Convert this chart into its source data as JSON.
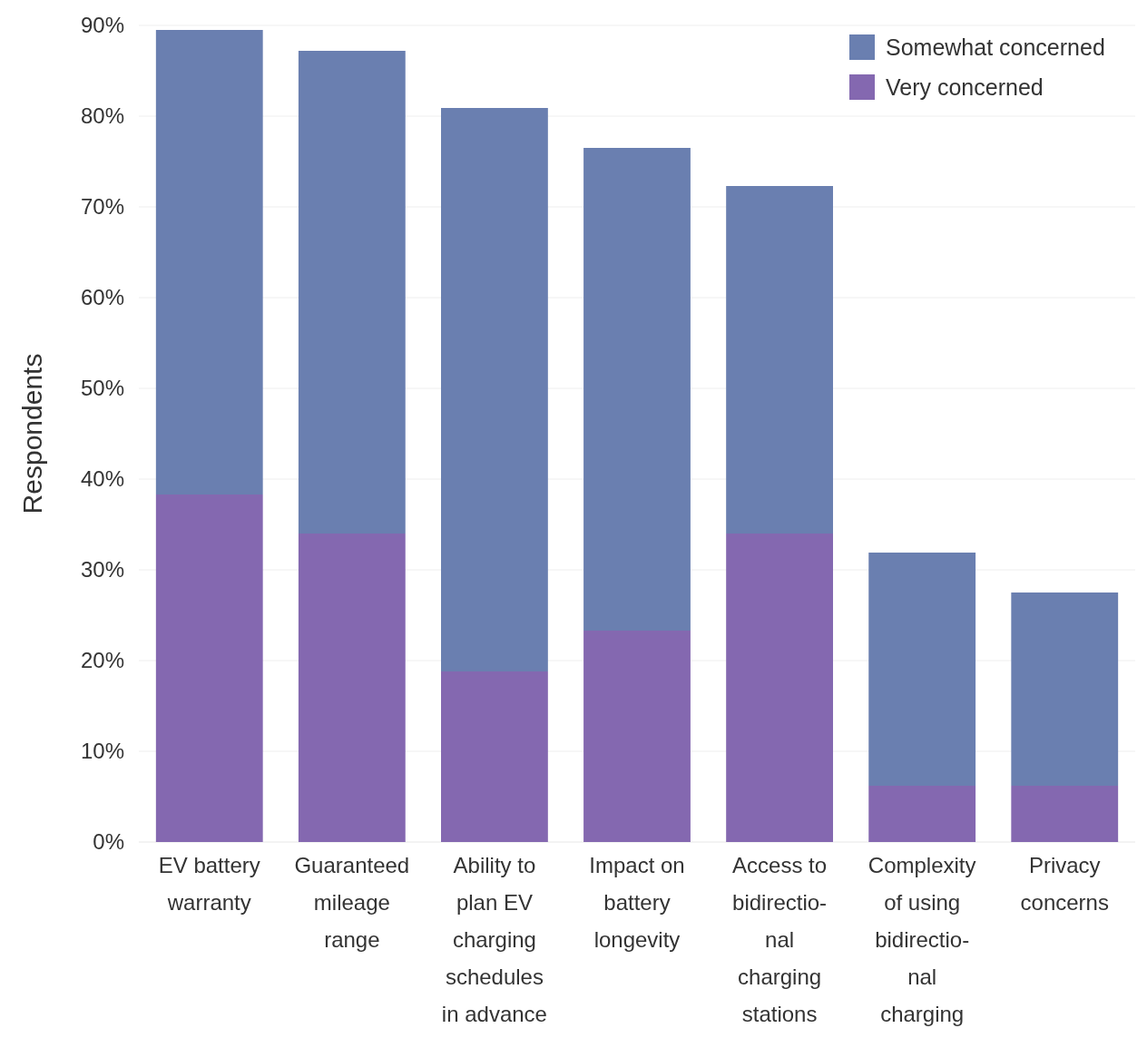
{
  "chart_data": {
    "type": "bar",
    "stacked": true,
    "ylabel": "Respondents",
    "categories": [
      "EV battery\nwarranty",
      "Guaranteed\nmileage\nrange",
      "Ability to\nplan EV\ncharging\nschedules\nin advance",
      "Impact on\nbattery\nlongevity",
      "Access to\nbidirectio-\nnal\ncharging\nstations",
      "Complexity\nof using\nbidirectio-\nnal\ncharging",
      "Privacy\nconcerns"
    ],
    "series": [
      {
        "name": "Very concerned",
        "color": "#8468b0",
        "values": [
          38.3,
          34,
          18.8,
          23.3,
          34,
          6.2,
          6.2
        ]
      },
      {
        "name": "Somewhat concerned",
        "color": "#6a7fb0",
        "values": [
          51.2,
          53.2,
          62.1,
          53.2,
          38.3,
          25.7,
          21.3
        ]
      }
    ],
    "ylim": [
      0,
      90
    ],
    "yticks": [
      {
        "value": 0,
        "label": "0%"
      },
      {
        "value": 10,
        "label": "10%"
      },
      {
        "value": 20,
        "label": "20%"
      },
      {
        "value": 30,
        "label": "30%"
      },
      {
        "value": 40,
        "label": "40%"
      },
      {
        "value": 50,
        "label": "50%"
      },
      {
        "value": 60,
        "label": "60%"
      },
      {
        "value": 70,
        "label": "70%"
      },
      {
        "value": 80,
        "label": "80%"
      },
      {
        "value": 90,
        "label": "90%"
      }
    ],
    "grid": "y",
    "legend": "top right"
  }
}
